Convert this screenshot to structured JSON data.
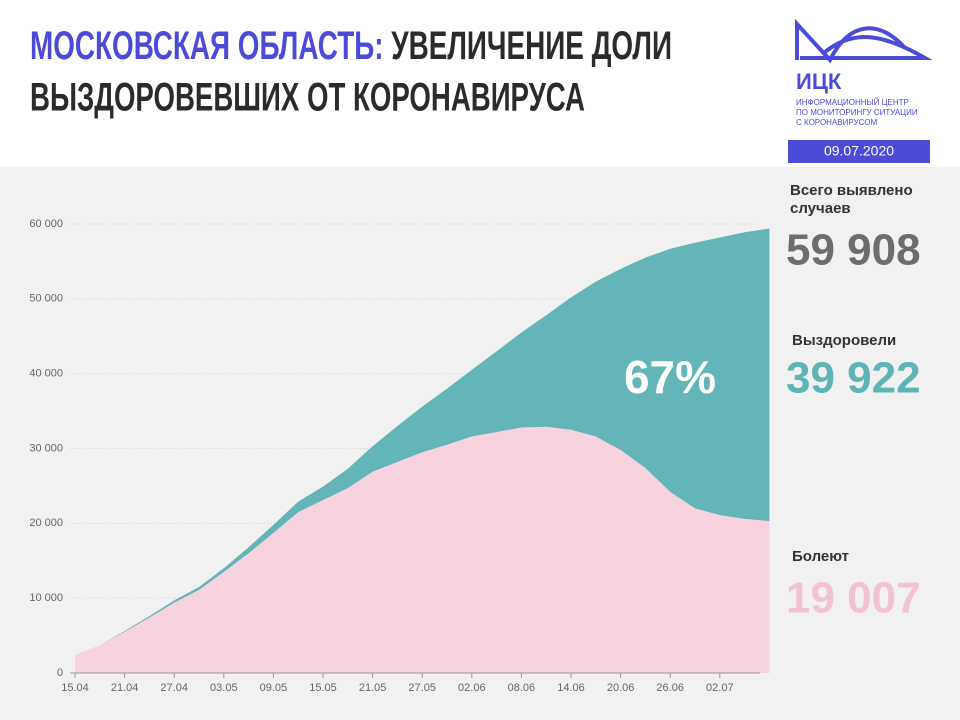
{
  "chart_data": {
    "type": "stacked_area",
    "title": {
      "highlight": "МОСКОВСКАЯ ОБЛАСТЬ:",
      "line1": "УВЕЛИЧЕНИЕ ДОЛИ",
      "line2": "ВЫЗДОРОВЕВШИХ ОТ КОРОНАВИРУСА"
    },
    "logo": {
      "name": "ИЦК",
      "lines": [
        "ИНФОРМАЦИОННЫЙ ЦЕНТР",
        "ПО МОНИТОРИНГУ СИТУАЦИИ",
        "С КОРОНАВИРУСОМ"
      ],
      "date": "09.07.2020"
    },
    "annotation": "67%",
    "total": {
      "label": "Всего выявлено случаев",
      "value": "59 908",
      "color": "#6d6d6d"
    },
    "categories": [
      "15.04",
      null,
      "21.04",
      null,
      "27.04",
      null,
      "03.05",
      null,
      "09.05",
      null,
      "15.05",
      null,
      "21.05",
      null,
      "27.05",
      null,
      "02.06",
      null,
      "08.06",
      null,
      "14.06",
      null,
      "20.06",
      null,
      "26.06",
      null,
      "02.07",
      null,
      null
    ],
    "series": [
      {
        "name": "Болеют",
        "color": "#f8d3df",
        "latest": "19 007",
        "latest_color": "#f4c2d2",
        "values": [
          2400,
          3700,
          5500,
          7400,
          9400,
          11100,
          13500,
          16000,
          18700,
          21500,
          23100,
          24700,
          26900,
          28200,
          29500,
          30500,
          31600,
          32200,
          32800,
          32900,
          32500,
          31600,
          29800,
          27400,
          24200,
          22000,
          21100,
          20600,
          20300
        ]
      },
      {
        "name": "Выздоровели",
        "color": "#63b5b8",
        "latest": "39 922",
        "latest_color": "#5fb4b5",
        "values": [
          0,
          0,
          100,
          200,
          300,
          400,
          500,
          800,
          1100,
          1400,
          1800,
          2600,
          3400,
          4800,
          6100,
          7500,
          8900,
          10800,
          12700,
          14900,
          17700,
          20700,
          24200,
          28100,
          32500,
          35500,
          37100,
          38300,
          39100
        ]
      }
    ],
    "ylim": [
      0,
      60000
    ],
    "yticks": [
      0,
      {
        "value": 10000,
        "label": "10 000"
      },
      {
        "value": 20000,
        "label": "20 000"
      },
      {
        "value": 30000,
        "label": "30 000"
      },
      {
        "value": 40000,
        "label": "40 000"
      },
      {
        "value": 50000,
        "label": "50 000"
      },
      {
        "value": 60000,
        "label": "60 000"
      }
    ],
    "grid": true
  }
}
